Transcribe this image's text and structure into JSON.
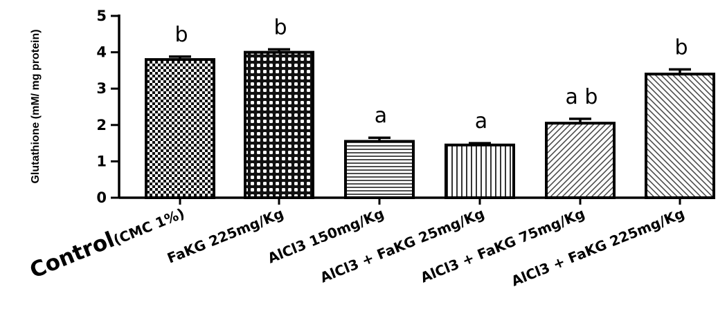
{
  "chart_data": {
    "type": "bar",
    "ylabel": "Glutathione (mM/ mg protein)",
    "ylim": [
      0,
      5
    ],
    "yticks": [
      0,
      1,
      2,
      3,
      4,
      5
    ],
    "grid": false,
    "bars": [
      {
        "label_main": "Control",
        "label_sub": "(CMC 1%)",
        "value": 3.8,
        "error": 0.08,
        "significance": "b",
        "pattern": "checker"
      },
      {
        "label_main": "FaKG 225mg/Kg",
        "label_sub": "",
        "value": 4.0,
        "error": 0.08,
        "significance": "b",
        "pattern": "checker-fine"
      },
      {
        "label_main": "AlCl3 150mg/Kg",
        "label_sub": "",
        "value": 1.55,
        "error": 0.1,
        "significance": "a",
        "pattern": "horizontal"
      },
      {
        "label_main": "AlCl3 + FaKG 25mg/Kg",
        "label_sub": "",
        "value": 1.45,
        "error": 0.05,
        "significance": "a",
        "pattern": "vertical"
      },
      {
        "label_main": "AlCl3 + FaKG 75mg/Kg",
        "label_sub": "",
        "value": 2.05,
        "error": 0.12,
        "significance": "a b",
        "pattern": "diagonal-up"
      },
      {
        "label_main": "AlCl3 + FaKG 225mg/Kg",
        "label_sub": "",
        "value": 3.4,
        "error": 0.13,
        "significance": "b",
        "pattern": "diagonal-down"
      }
    ]
  }
}
